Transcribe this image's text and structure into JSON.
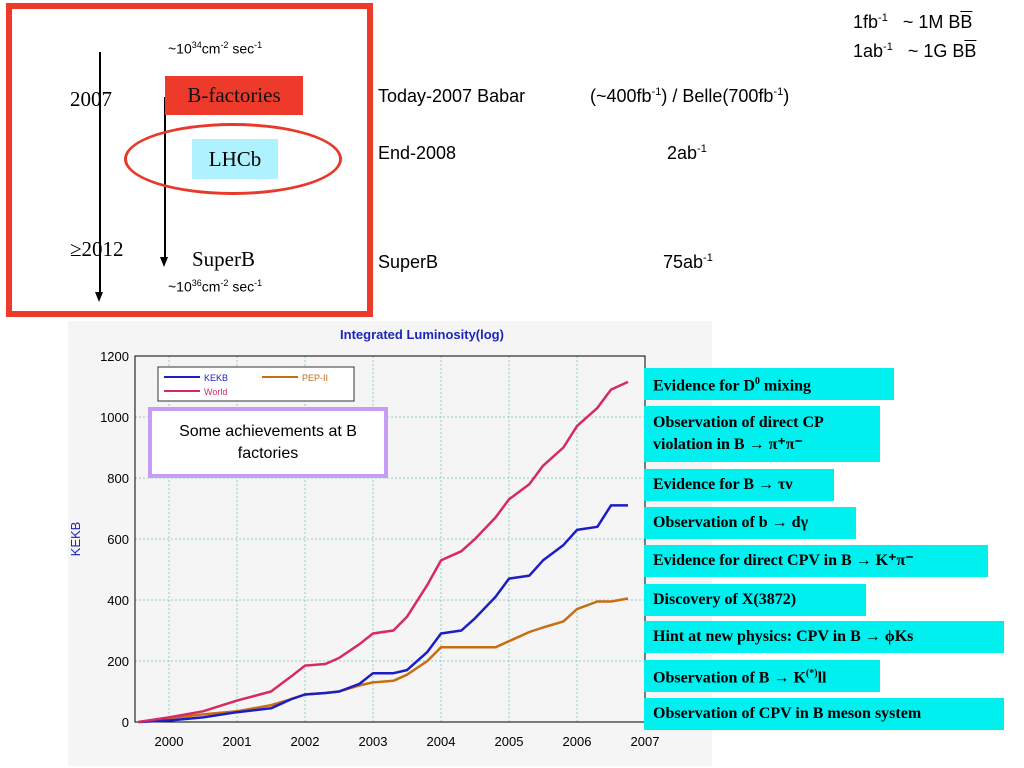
{
  "top_left": {
    "rate_top": {
      "pre": "~10",
      "exp1": "34",
      "mid": "cm",
      "exp2": "-2",
      "post": " sec",
      "exp3": "-1"
    },
    "rate_bottom": {
      "pre": "~10",
      "exp1": "36",
      "mid": "cm",
      "exp2": "-2",
      "post": " sec",
      "exp3": "-1"
    },
    "year_2007": "2007",
    "year_2012": "≥2012",
    "bfactories": "B-factories",
    "lhcb": "LHCb",
    "superb": "SuperB"
  },
  "top_right": {
    "conv1": {
      "a": "1fb",
      "aexp": "-1",
      "b": "~ 1M B",
      "c": "B"
    },
    "conv2": {
      "a": "1ab",
      "aexp": "-1",
      "b": "~ 1G B",
      "c": "B"
    },
    "row1": {
      "label": "Today-2007 Babar",
      "val_a": "(~400fb",
      "exp_a": "-1",
      "val_b": ") / Belle(700fb",
      "exp_b": "-1",
      "val_c": ")"
    },
    "row2": {
      "label": "End-2008",
      "val": "2ab",
      "exp": "-1"
    },
    "row3": {
      "label": "SuperB",
      "val": "75ab",
      "exp": "-1"
    }
  },
  "achievements_box": "Some achievements at B factories",
  "achievements": [
    {
      "pre": "Evidence for D",
      "sup": "0",
      "post": " mixing"
    },
    {
      "line1": "Observation of direct CP",
      "line2": "violation in B → π⁺π⁻"
    },
    {
      "text": "Evidence for B → τν"
    },
    {
      "text": "Observation of  b → dγ"
    },
    {
      "text": "Evidence for direct CPV in B → K⁺π⁻"
    },
    {
      "text": "Discovery of X(3872)"
    },
    {
      "text": "Hint at new physics: CPV in B → ϕKs"
    },
    {
      "pre": "Observation of B → K",
      "sup": "(*)",
      "post": "ll"
    },
    {
      "text": "Observation of CPV in B meson system"
    }
  ],
  "colors": {
    "red": "#ee3a2a",
    "cyan": "#00f0f0",
    "lilac": "#c79cf5",
    "kekb": "#1d1dc4",
    "world": "#d62a64",
    "pep": "#c66e14"
  },
  "chart_data": {
    "type": "line",
    "title": "Integrated Luminosity(log)",
    "xlabel": "",
    "ylabel": "KEKB",
    "xlim": [
      1999.5,
      2007
    ],
    "ylim": [
      0,
      1200
    ],
    "x_ticks": [
      "2000",
      "2001",
      "2002",
      "2003",
      "2004",
      "2005",
      "2006",
      "2007"
    ],
    "y_ticks": [
      "0",
      "200",
      "400",
      "600",
      "800",
      "1000",
      "1200"
    ],
    "grid": true,
    "legend": "top-left",
    "series": [
      {
        "name": "KEKB",
        "color": "#1d1dc4",
        "x": [
          1999.55,
          2000.0,
          2000.5,
          2001.0,
          2001.5,
          2001.8,
          2002.0,
          2002.3,
          2002.5,
          2002.8,
          2003.0,
          2003.3,
          2003.5,
          2003.8,
          2004.0,
          2004.3,
          2004.5,
          2004.8,
          2005.0,
          2005.3,
          2005.5,
          2005.8,
          2006.0,
          2006.3,
          2006.5,
          2006.75
        ],
        "values": [
          0,
          5,
          15,
          32,
          45,
          75,
          90,
          95,
          100,
          125,
          160,
          160,
          170,
          230,
          290,
          300,
          340,
          410,
          470,
          480,
          530,
          580,
          630,
          640,
          710,
          710
        ]
      },
      {
        "name": "World",
        "color": "#d62a64",
        "x": [
          1999.55,
          2000.0,
          2000.5,
          2001.0,
          2001.5,
          2001.8,
          2002.0,
          2002.3,
          2002.5,
          2002.8,
          2003.0,
          2003.3,
          2003.5,
          2003.8,
          2004.0,
          2004.3,
          2004.5,
          2004.8,
          2005.0,
          2005.3,
          2005.5,
          2005.8,
          2006.0,
          2006.3,
          2006.5,
          2006.75
        ],
        "values": [
          0,
          15,
          35,
          70,
          100,
          150,
          185,
          190,
          210,
          255,
          290,
          300,
          345,
          450,
          530,
          560,
          600,
          670,
          730,
          780,
          840,
          900,
          970,
          1030,
          1090,
          1115
        ]
      },
      {
        "name": "PEP-II",
        "color": "#c66e14",
        "x": [
          1999.55,
          2000.0,
          2000.5,
          2001.0,
          2001.5,
          2001.8,
          2002.0,
          2002.3,
          2002.5,
          2002.8,
          2003.0,
          2003.3,
          2003.5,
          2003.8,
          2004.0,
          2004.3,
          2004.5,
          2004.8,
          2005.0,
          2005.3,
          2005.5,
          2005.8,
          2006.0,
          2006.3,
          2006.5,
          2006.75
        ],
        "values": [
          0,
          12,
          25,
          35,
          55,
          75,
          90,
          95,
          100,
          120,
          130,
          135,
          155,
          200,
          245,
          245,
          245,
          245,
          265,
          295,
          310,
          330,
          370,
          395,
          395,
          405
        ]
      }
    ]
  }
}
